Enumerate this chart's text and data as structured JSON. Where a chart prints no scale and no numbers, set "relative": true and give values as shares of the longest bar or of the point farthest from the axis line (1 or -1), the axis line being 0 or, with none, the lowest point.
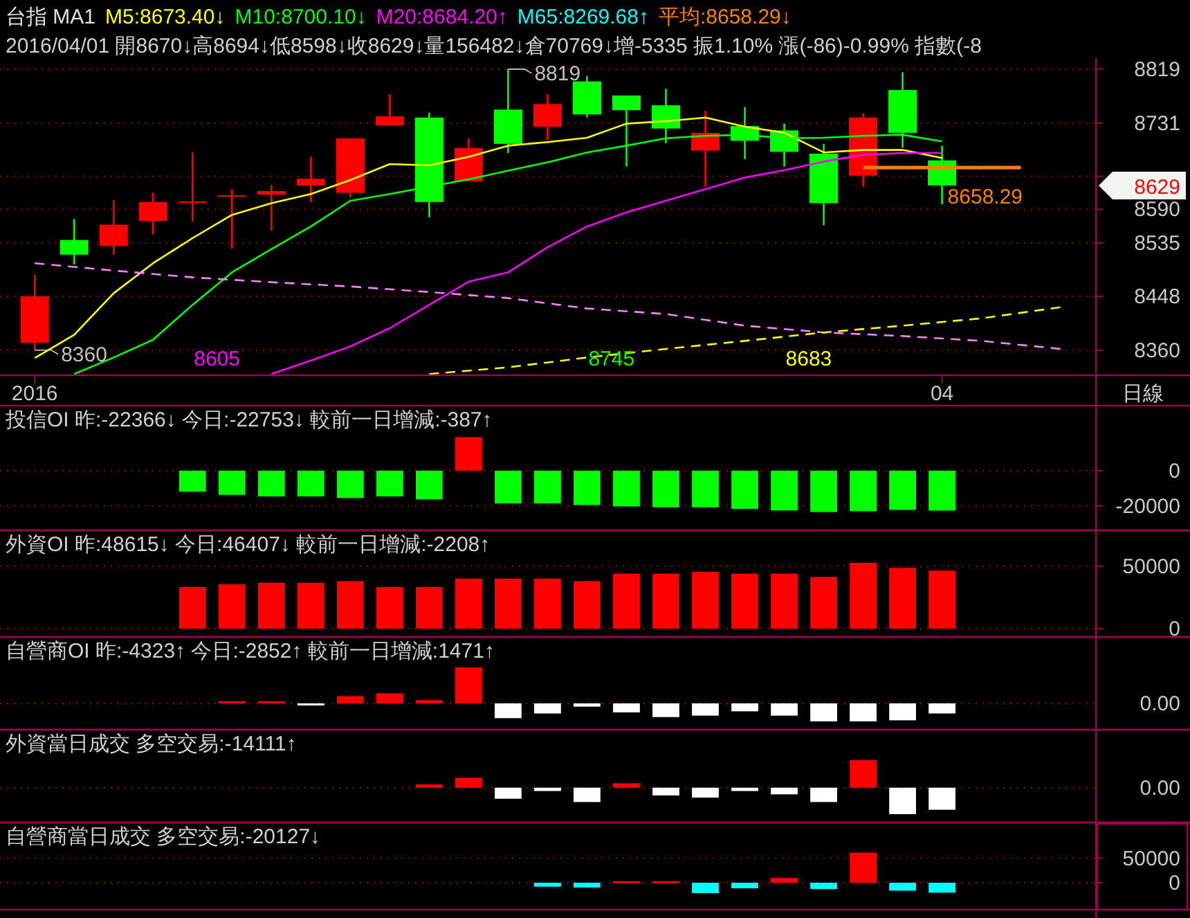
{
  "chart_data": [
    {
      "type": "candlestick",
      "title": "台指 MA1",
      "subtitle": "2016/04/01 開8670↓高8694↓低8598↓收8629↓量156482↓倉70769↓增-5335 振1.10% 漲(-86)-0.99% 指數(-8",
      "xlabel": "日線",
      "categories": [
        "2016",
        null,
        null,
        null,
        null,
        null,
        null,
        null,
        null,
        null,
        null,
        null,
        null,
        null,
        null,
        null,
        null,
        null,
        null,
        null,
        null,
        null,
        null,
        "04",
        null,
        null,
        null
      ],
      "ohlc": [
        [
          8372,
          8483,
          8360,
          8448
        ],
        [
          8540,
          8574,
          8500,
          8516
        ],
        [
          8530,
          8605,
          8516,
          8565
        ],
        [
          8571,
          8617,
          8549,
          8602
        ],
        [
          8602,
          8683,
          8570,
          8603
        ],
        [
          8612,
          8623,
          8526,
          8613
        ],
        [
          8614,
          8630,
          8555,
          8620
        ],
        [
          8629,
          8676,
          8602,
          8640
        ],
        [
          8617,
          8706,
          8609,
          8706
        ],
        [
          8727,
          8778,
          8727,
          8742
        ],
        [
          8740,
          8748,
          8577,
          8602
        ],
        [
          8636,
          8706,
          8636,
          8690
        ],
        [
          8753,
          8819,
          8682,
          8697
        ],
        [
          8725,
          8778,
          8703,
          8762
        ],
        [
          8799,
          8808,
          8740,
          8745
        ],
        [
          8776,
          8776,
          8660,
          8752
        ],
        [
          8760,
          8787,
          8698,
          8722
        ],
        [
          8686,
          8751,
          8627,
          8715
        ],
        [
          8726,
          8757,
          8672,
          8702
        ],
        [
          8719,
          8730,
          8660,
          8684
        ],
        [
          8681,
          8697,
          8564,
          8600
        ],
        [
          8645,
          8747,
          8627,
          8740
        ],
        [
          8785,
          8814,
          8691,
          8715
        ],
        [
          8670,
          8694,
          8598,
          8629
        ],
        null,
        null,
        null
      ],
      "series": [
        {
          "type": "line",
          "name": "M5:8673.40↓",
          "color": "#ffff00",
          "values": [
            8347,
            8385,
            8453,
            8502,
            8543,
            8581,
            8600,
            8615,
            8638,
            8664,
            8662,
            8676,
            8694,
            8700,
            8707,
            8730,
            8734,
            8740,
            8725,
            8715,
            8683,
            8687,
            8687,
            8674,
            null,
            null,
            null
          ]
        },
        {
          "type": "line",
          "name": "M10:8700.10↓",
          "color": "#00ff00",
          "values": [
            null,
            8321,
            8348,
            8377,
            8434,
            8487,
            8525,
            8562,
            8604,
            8615,
            8627,
            8639,
            8653,
            8667,
            8683,
            8694,
            8706,
            8710,
            8712,
            8706,
            8707,
            8710,
            8712,
            8701,
            null,
            null,
            null
          ]
        },
        {
          "type": "line",
          "name": "M20:8684.20↑",
          "color": "#ff00ff",
          "values": [
            null,
            null,
            null,
            null,
            null,
            null,
            8321,
            8343,
            8366,
            8396,
            8434,
            8472,
            8487,
            8528,
            8562,
            8585,
            8604,
            8623,
            8642,
            8654,
            8668,
            8679,
            8682,
            8682,
            null,
            null,
            null
          ]
        },
        {
          "type": "line",
          "name": "M65:8269.68↑",
          "color": "#00ffff",
          "values": [
            null,
            null,
            null,
            null,
            null,
            null,
            null,
            null,
            null,
            null,
            null,
            null,
            null,
            null,
            null,
            null,
            null,
            null,
            null,
            null,
            null,
            null,
            null,
            null,
            null,
            null,
            null
          ]
        },
        {
          "type": "line",
          "name": "平均:8658.29↓",
          "color": "#ff8000",
          "values": [
            null,
            null,
            null,
            null,
            null,
            null,
            null,
            null,
            null,
            null,
            null,
            null,
            null,
            null,
            null,
            null,
            null,
            null,
            null,
            null,
            null,
            8658.29,
            8658.29,
            8658.29,
            8658.29,
            8658.29,
            null
          ]
        },
        {
          "type": "line",
          "color": "#ff80ff",
          "line_style": "dashed",
          "values": [
            8502,
            null,
            8490,
            null,
            8479,
            null,
            8471,
            null,
            8464,
            null,
            8455,
            null,
            8445,
            null,
            8428,
            null,
            8419,
            null,
            8400,
            null,
            8389,
            null,
            8383,
            null,
            8375,
            null,
            8362
          ]
        },
        {
          "type": "line",
          "color": "#ffff00",
          "line_style": "dashed",
          "values": [
            null,
            null,
            null,
            null,
            null,
            null,
            null,
            null,
            null,
            null,
            8321,
            null,
            8332,
            null,
            8348,
            null,
            8362,
            null,
            8375,
            null,
            8389,
            null,
            8400,
            null,
            8412,
            null,
            8430
          ]
        }
      ],
      "ylim": [
        8319,
        8837
      ],
      "yticks": [
        8819,
        8731,
        {
          "value": 8644,
          "label": null
        },
        8590,
        8535,
        8448,
        8360
      ],
      "grid": "y",
      "legend": "top left",
      "annotations": [
        "8605",
        "8745",
        "8683",
        "8629",
        "8819",
        "8360",
        {
          "text": "8658.29",
          "y": 8658.29
        }
      ]
    },
    {
      "type": "bar",
      "title": "投信OI 昨:-22366↓ 今日:-22753↓ 較前一日增減:-387↑",
      "categories": [
        "2016",
        null,
        null,
        null,
        null,
        null,
        null,
        null,
        null,
        null,
        null,
        null,
        null,
        null,
        null,
        null,
        null,
        null,
        null,
        null,
        null,
        null,
        null,
        "04",
        null,
        null,
        null
      ],
      "values": [
        null,
        null,
        null,
        null,
        -12000,
        -13800,
        -14700,
        -14700,
        -15600,
        -14700,
        -16400,
        19100,
        -18700,
        -18700,
        -19600,
        -20400,
        -20900,
        -20900,
        -21800,
        -22700,
        -23600,
        -23100,
        -22366,
        -22753,
        null,
        null,
        null
      ],
      "colors": [
        null,
        null,
        null,
        null,
        "#00ff00",
        "#00ff00",
        "#00ff00",
        "#00ff00",
        "#00ff00",
        "#00ff00",
        "#00ff00",
        "#ff0000",
        "#00ff00",
        "#00ff00",
        "#00ff00",
        "#00ff00",
        "#00ff00",
        "#00ff00",
        "#00ff00",
        "#00ff00",
        "#00ff00",
        "#00ff00",
        "#00ff00",
        "#00ff00",
        null,
        null,
        null
      ],
      "ylim": [
        -34000,
        37000
      ],
      "yticks": [
        0,
        -20000
      ],
      "grid": "y",
      "tick_labels": "y"
    },
    {
      "type": "bar",
      "title": "外資OI 昨:48615↓ 今日:46407↓ 較前一日增減:-2208↑",
      "categories": [
        "2016",
        null,
        null,
        null,
        null,
        null,
        null,
        null,
        null,
        null,
        null,
        null,
        null,
        null,
        null,
        null,
        null,
        null,
        null,
        null,
        null,
        null,
        null,
        "04",
        null,
        null,
        null
      ],
      "values": [
        null,
        null,
        null,
        null,
        33300,
        35400,
        36700,
        36700,
        38000,
        33300,
        33300,
        40000,
        40000,
        40000,
        38000,
        44000,
        44000,
        45400,
        44000,
        44000,
        41400,
        52700,
        48615,
        46407,
        null,
        null,
        null
      ],
      "color": "#ff0000",
      "ylim": [
        -6700,
        78700
      ],
      "yticks": [
        50000,
        0
      ],
      "grid": "y",
      "tick_labels": "y"
    },
    {
      "type": "bar",
      "title": "自營商OI 昨:-4323↑ 今日:-2852↑ 較前一日增減:1471↑",
      "relative": true,
      "categories": [
        "2016",
        null,
        null,
        null,
        null,
        null,
        null,
        null,
        null,
        null,
        null,
        null,
        null,
        null,
        null,
        null,
        null,
        null,
        null,
        null,
        null,
        null,
        null,
        "04",
        null,
        null,
        null
      ],
      "values": [
        null,
        null,
        null,
        null,
        null,
        0.06,
        0.06,
        -0.02,
        0.2,
        0.28,
        0.09,
        1,
        -0.41,
        -0.28,
        -0.09,
        -0.25,
        -0.38,
        -0.34,
        -0.22,
        -0.34,
        -0.5,
        -0.5,
        -0.47,
        -0.28,
        null,
        null,
        null
      ],
      "colors": [
        null,
        null,
        null,
        null,
        null,
        "#ff0000",
        "#ff0000",
        "#ffffff",
        "#ff0000",
        "#ff0000",
        "#ff0000",
        "#ff0000",
        "#ffffff",
        "#ffffff",
        "#ffffff",
        "#ffffff",
        "#ffffff",
        "#ffffff",
        "#ffffff",
        "#ffffff",
        "#ffffff",
        "#ffffff",
        "#ffffff",
        "#ffffff",
        null,
        null,
        null
      ],
      "ref_lines": [
        {
          "axis": "y",
          "value": 0,
          "color": "#a00000",
          "line_style": "dotted"
        }
      ],
      "tick_labels": "y",
      "annotations": [
        "0.00"
      ]
    },
    {
      "type": "bar",
      "title": "外資當日成交 多空交易:-14111↑",
      "relative": true,
      "categories": [
        "2016",
        null,
        null,
        null,
        null,
        null,
        null,
        null,
        null,
        null,
        null,
        null,
        null,
        null,
        null,
        null,
        null,
        null,
        null,
        null,
        null,
        null,
        null,
        "04",
        null,
        null,
        null
      ],
      "values": [
        null,
        null,
        null,
        null,
        null,
        null,
        null,
        null,
        null,
        null,
        0.12,
        0.36,
        -0.4,
        -0.12,
        -0.52,
        0.16,
        -0.28,
        -0.36,
        -0.12,
        -0.24,
        -0.52,
        1,
        -0.96,
        -0.8,
        null,
        null,
        null
      ],
      "colors": [
        null,
        null,
        null,
        null,
        null,
        null,
        null,
        null,
        null,
        null,
        "#ff0000",
        "#ff0000",
        "#ffffff",
        "#ffffff",
        "#ffffff",
        "#ff0000",
        "#ffffff",
        "#ffffff",
        "#ffffff",
        "#ffffff",
        "#ffffff",
        "#ff0000",
        "#ffffff",
        "#ffffff",
        null,
        null,
        null
      ],
      "ref_lines": [
        {
          "axis": "y",
          "value": 0,
          "color": "#a00000",
          "line_style": "dotted"
        }
      ],
      "tick_labels": "y",
      "annotations": [
        "0.00"
      ]
    },
    {
      "type": "bar",
      "title": "自營商當日成交 多空交易:-20127↓",
      "categories": [
        "2016",
        null,
        null,
        null,
        null,
        null,
        null,
        null,
        null,
        null,
        null,
        null,
        null,
        null,
        null,
        null,
        null,
        null,
        null,
        null,
        null,
        null,
        null,
        "04",
        null,
        null,
        null
      ],
      "values": [
        null,
        null,
        null,
        null,
        null,
        null,
        null,
        null,
        null,
        null,
        null,
        null,
        null,
        -8000,
        -9700,
        3200,
        3200,
        -21000,
        -11300,
        9700,
        -12900,
        61300,
        -16100,
        -20127,
        null,
        null,
        null
      ],
      "colors": [
        null,
        null,
        null,
        null,
        null,
        null,
        null,
        null,
        null,
        null,
        null,
        null,
        null,
        "#00ffff",
        "#00ffff",
        "#ff0000",
        "#ff0000",
        "#00ffff",
        "#00ffff",
        "#ff0000",
        "#00ffff",
        "#ff0000",
        "#00ffff",
        "#00ffff",
        null,
        null,
        null
      ],
      "ylim": [
        -54800,
        122600
      ],
      "yticks": [
        50000,
        0
      ],
      "grid": "y",
      "tick_labels": "y"
    }
  ]
}
